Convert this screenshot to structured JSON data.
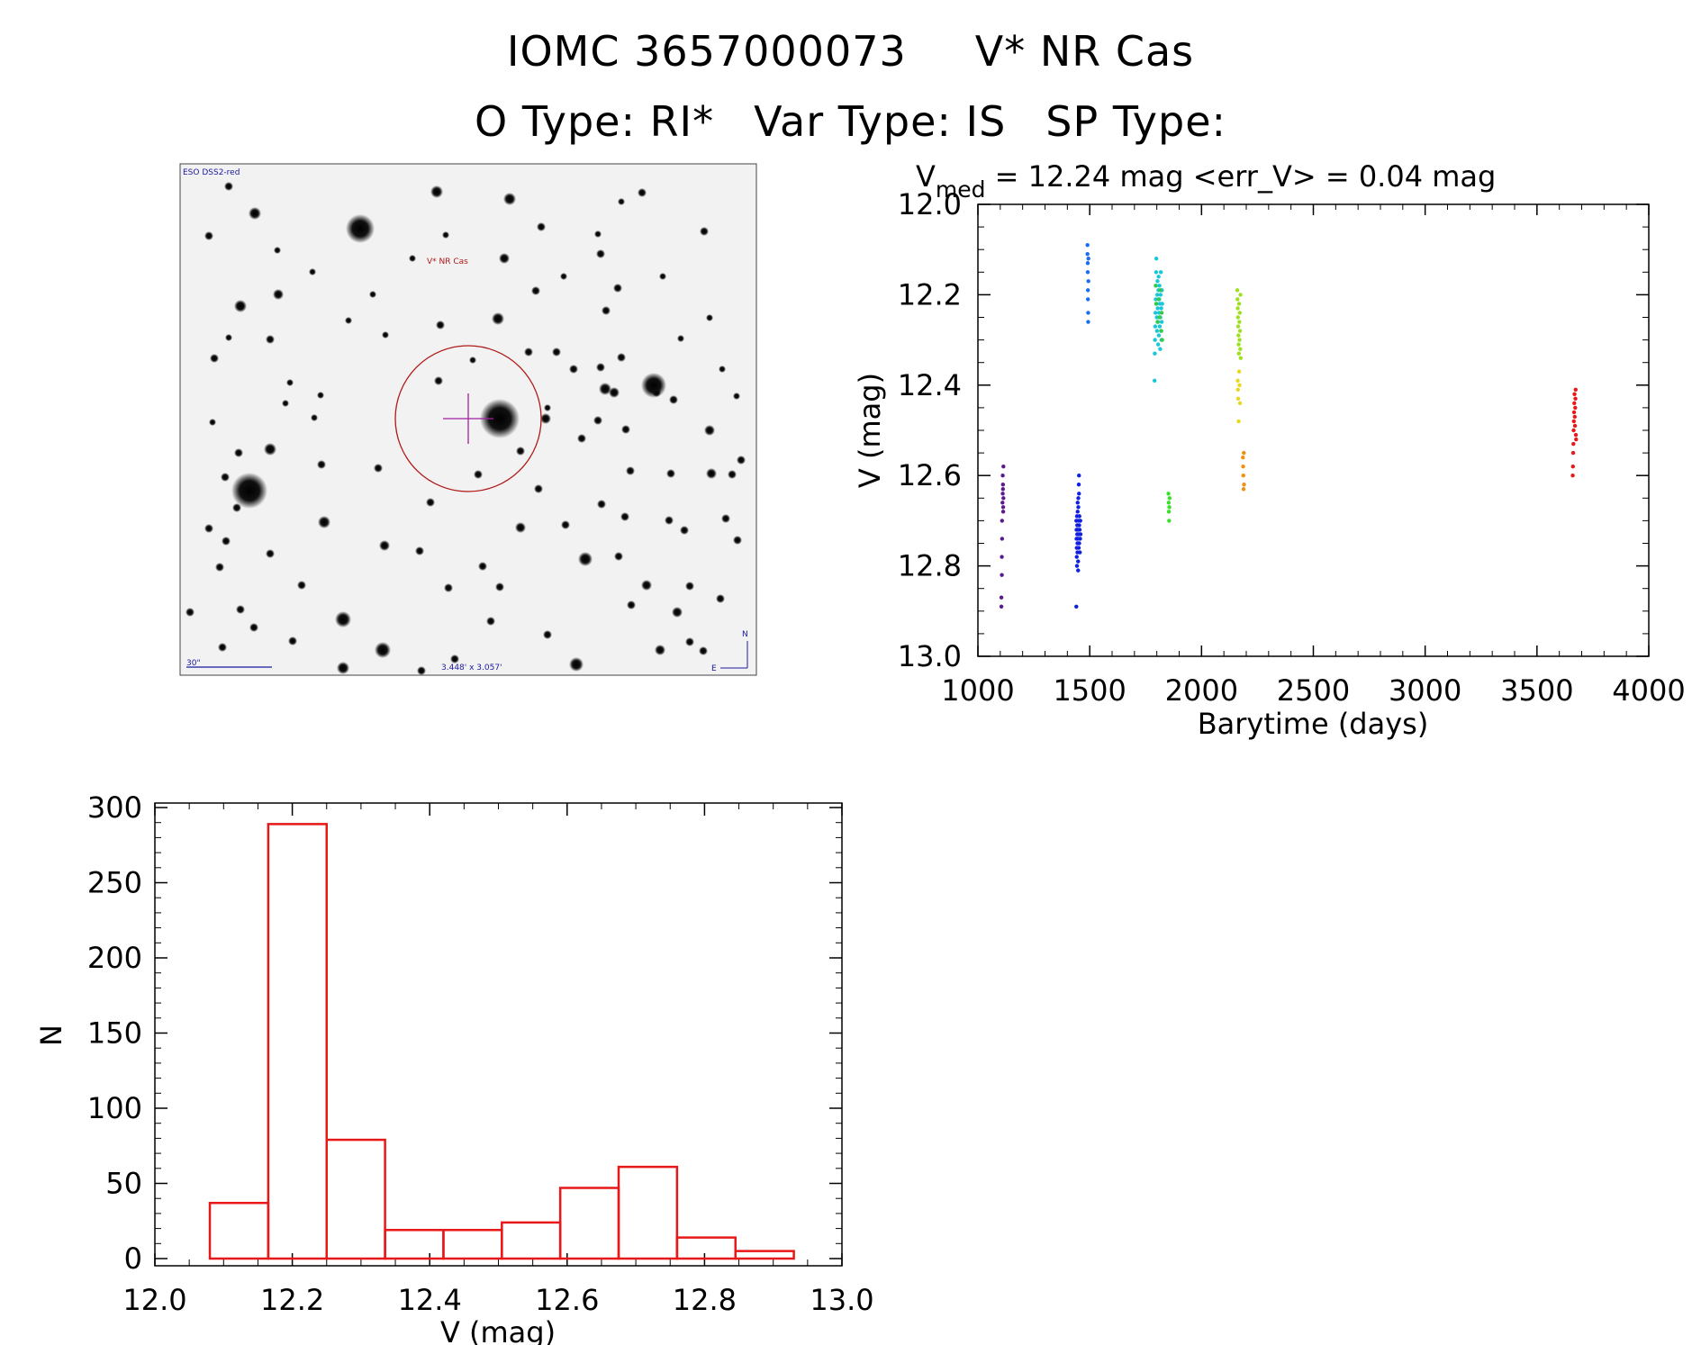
{
  "header": {
    "object_id": "IOMC 3657000073",
    "simbad_name": "V* NR Cas",
    "o_type": "O Type: RI*",
    "var_type": "Var Type: IS",
    "sp_type": "SP Type:"
  },
  "finder_image": {
    "survey_label": "ESO DSS2-red",
    "target_label": "V* NR Cas",
    "scale_label": "30\"",
    "fov_label": "3.448' x 3.057'",
    "north_label": "N",
    "east_label": "E"
  },
  "chart_data": [
    {
      "type": "scatter",
      "title_prefix": "V",
      "title_sub": "med",
      "title_rest": " = 12.24 mag <err_V> = 0.04 mag",
      "xlabel": "Barytime (days)",
      "ylabel": "V (mag)",
      "xlim": [
        1000,
        4000
      ],
      "ylim": [
        13.0,
        12.0
      ],
      "y_inverted": true,
      "xticks": [
        "1000",
        "1500",
        "2000",
        "2500",
        "3000",
        "3500",
        "4000"
      ],
      "yticks": [
        "12.0",
        "12.2",
        "12.4",
        "12.6",
        "12.8",
        "13.0"
      ],
      "grid": false,
      "series": [
        {
          "color": "#5a1a8c",
          "points": [
            [
              1105,
              12.87
            ],
            [
              1105,
              12.89
            ],
            [
              1107,
              12.82
            ],
            [
              1107,
              12.78
            ],
            [
              1108,
              12.74
            ],
            [
              1108,
              12.7
            ],
            [
              1110,
              12.66
            ],
            [
              1111,
              12.6
            ],
            [
              1111,
              12.64
            ],
            [
              1112,
              12.62
            ],
            [
              1112,
              12.63
            ],
            [
              1113,
              12.67
            ],
            [
              1113,
              12.68
            ],
            [
              1114,
              12.58
            ],
            [
              1114,
              12.65
            ]
          ]
        },
        {
          "color": "#1020e0",
          "points": [
            [
              1440,
              12.89
            ],
            [
              1440,
              12.7
            ],
            [
              1441,
              12.72
            ],
            [
              1441,
              12.74
            ],
            [
              1442,
              12.76
            ],
            [
              1442,
              12.78
            ],
            [
              1443,
              12.69
            ],
            [
              1443,
              12.8
            ],
            [
              1444,
              12.73
            ],
            [
              1444,
              12.71
            ],
            [
              1445,
              12.75
            ],
            [
              1445,
              12.77
            ],
            [
              1446,
              12.68
            ],
            [
              1446,
              12.66
            ],
            [
              1447,
              12.72
            ],
            [
              1447,
              12.74
            ],
            [
              1448,
              12.79
            ],
            [
              1448,
              12.81
            ],
            [
              1449,
              12.67
            ],
            [
              1449,
              12.65
            ],
            [
              1450,
              12.7
            ],
            [
              1450,
              12.73
            ],
            [
              1451,
              12.76
            ],
            [
              1451,
              12.62
            ],
            [
              1452,
              12.6
            ],
            [
              1452,
              12.64
            ],
            [
              1453,
              12.71
            ],
            [
              1453,
              12.75
            ],
            [
              1454,
              12.69
            ],
            [
              1455,
              12.72
            ],
            [
              1456,
              12.77
            ],
            [
              1457,
              12.74
            ],
            [
              1458,
              12.7
            ],
            [
              1459,
              12.73
            ]
          ]
        },
        {
          "color": "#1a6cf0",
          "points": [
            [
              1490,
              12.09
            ],
            [
              1490,
              12.11
            ],
            [
              1491,
              12.13
            ],
            [
              1491,
              12.15
            ],
            [
              1492,
              12.19
            ],
            [
              1492,
              12.21
            ],
            [
              1493,
              12.24
            ],
            [
              1493,
              12.26
            ],
            [
              1494,
              12.12
            ],
            [
              1494,
              12.17
            ]
          ]
        },
        {
          "color": "#18c8d8",
          "points": [
            [
              1790,
              12.39
            ],
            [
              1791,
              12.33
            ],
            [
              1792,
              12.3
            ],
            [
              1793,
              12.27
            ],
            [
              1794,
              12.24
            ],
            [
              1795,
              12.21
            ],
            [
              1796,
              12.18
            ],
            [
              1797,
              12.15
            ],
            [
              1798,
              12.12
            ],
            [
              1799,
              12.22
            ],
            [
              1800,
              12.25
            ],
            [
              1801,
              12.28
            ],
            [
              1802,
              12.2
            ],
            [
              1803,
              12.17
            ],
            [
              1804,
              12.23
            ],
            [
              1805,
              12.26
            ],
            [
              1806,
              12.31
            ],
            [
              1807,
              12.19
            ],
            [
              1808,
              12.16
            ],
            [
              1809,
              12.29
            ],
            [
              1810,
              12.24
            ],
            [
              1811,
              12.21
            ],
            [
              1812,
              12.18
            ],
            [
              1813,
              12.27
            ],
            [
              1814,
              12.22
            ],
            [
              1815,
              12.32
            ],
            [
              1816,
              12.25
            ],
            [
              1817,
              12.2
            ],
            [
              1818,
              12.15
            ],
            [
              1819,
              12.28
            ],
            [
              1820,
              12.23
            ],
            [
              1821,
              12.3
            ],
            [
              1822,
              12.26
            ],
            [
              1823,
              12.19
            ],
            [
              1824,
              12.22
            ]
          ]
        },
        {
          "color": "#3ac848",
          "points": [
            [
              1795,
              12.18
            ],
            [
              1797,
              12.22
            ],
            [
              1803,
              12.26
            ],
            [
              1808,
              12.21
            ],
            [
              1812,
              12.25
            ],
            [
              1816,
              12.19
            ],
            [
              1820,
              12.28
            ],
            [
              1822,
              12.24
            ],
            [
              1824,
              12.3
            ]
          ]
        },
        {
          "color": "#38e028",
          "points": [
            [
              1852,
              12.64
            ],
            [
              1853,
              12.66
            ],
            [
              1854,
              12.68
            ],
            [
              1855,
              12.7
            ],
            [
              1856,
              12.67
            ],
            [
              1857,
              12.65
            ]
          ]
        },
        {
          "color": "#9ee01e",
          "points": [
            [
              2160,
              12.19
            ],
            [
              2161,
              12.21
            ],
            [
              2162,
              12.23
            ],
            [
              2163,
              12.25
            ],
            [
              2164,
              12.27
            ],
            [
              2165,
              12.29
            ],
            [
              2166,
              12.31
            ],
            [
              2167,
              12.33
            ],
            [
              2168,
              12.22
            ],
            [
              2169,
              12.26
            ],
            [
              2170,
              12.3
            ],
            [
              2171,
              12.24
            ],
            [
              2172,
              12.28
            ],
            [
              2173,
              12.32
            ],
            [
              2174,
              12.2
            ],
            [
              2175,
              12.34
            ]
          ]
        },
        {
          "color": "#e8d820",
          "points": [
            [
              2162,
              12.39
            ],
            [
              2163,
              12.41
            ],
            [
              2164,
              12.43
            ],
            [
              2166,
              12.48
            ],
            [
              2168,
              12.37
            ],
            [
              2170,
              12.4
            ],
            [
              2172,
              12.44
            ]
          ]
        },
        {
          "color": "#f09010",
          "points": [
            [
              2185,
              12.56
            ],
            [
              2186,
              12.58
            ],
            [
              2187,
              12.6
            ],
            [
              2188,
              12.63
            ],
            [
              2189,
              12.55
            ],
            [
              2190,
              12.62
            ]
          ]
        },
        {
          "color": "#e81818",
          "points": [
            [
              3660,
              12.6
            ],
            [
              3661,
              12.58
            ],
            [
              3662,
              12.55
            ],
            [
              3663,
              12.53
            ],
            [
              3664,
              12.5
            ],
            [
              3665,
              12.48
            ],
            [
              3666,
              12.46
            ],
            [
              3667,
              12.44
            ],
            [
              3668,
              12.42
            ],
            [
              3669,
              12.47
            ],
            [
              3670,
              12.49
            ],
            [
              3671,
              12.45
            ],
            [
              3672,
              12.43
            ],
            [
              3673,
              12.41
            ],
            [
              3674,
              12.51
            ],
            [
              3675,
              12.52
            ]
          ]
        }
      ]
    },
    {
      "type": "bar",
      "xlabel": "V (mag)",
      "ylabel": "N",
      "xlim": [
        12.0,
        13.0
      ],
      "ylim": [
        0,
        300
      ],
      "xticks": [
        "12.0",
        "12.2",
        "12.4",
        "12.6",
        "12.8",
        "13.0"
      ],
      "yticks": [
        "0",
        "50",
        "100",
        "150",
        "200",
        "250",
        "300"
      ],
      "bar_color": "#e81818",
      "bin_edges": [
        12.08,
        12.165,
        12.25,
        12.335,
        12.42,
        12.505,
        12.59,
        12.675,
        12.76,
        12.845,
        12.93
      ],
      "values": [
        37,
        289,
        79,
        19,
        19,
        24,
        47,
        61,
        14,
        5
      ]
    }
  ]
}
